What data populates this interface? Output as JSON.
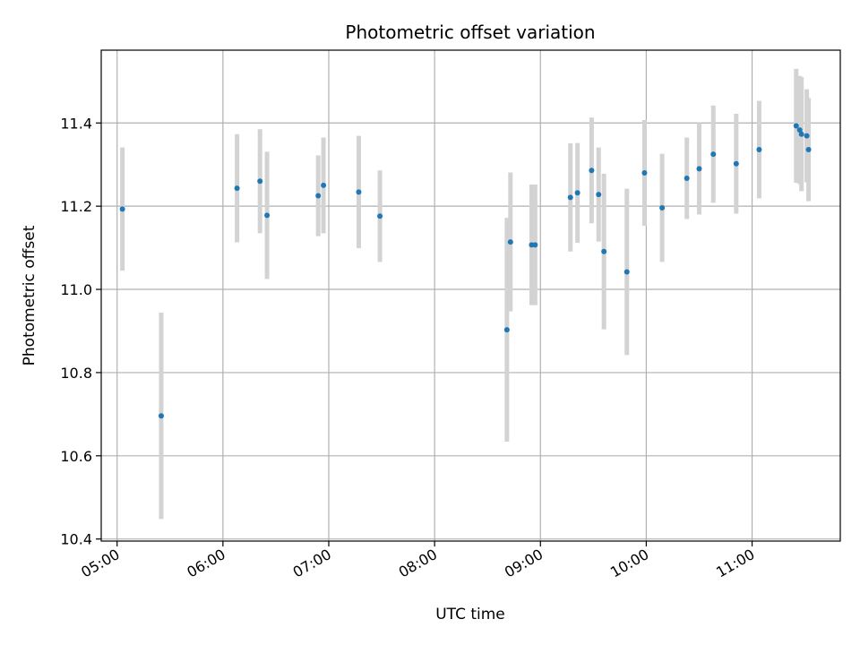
{
  "chart_data": {
    "type": "scatter",
    "title": "Photometric offset variation",
    "xlabel": "UTC time",
    "ylabel": "Photometric offset",
    "x_unit": "hours UTC",
    "xlim": [
      "04:51",
      "11:50"
    ],
    "ylim": [
      10.395,
      11.575
    ],
    "x_ticks": [
      "05:00",
      "06:00",
      "07:00",
      "08:00",
      "09:00",
      "10:00",
      "11:00"
    ],
    "y_ticks": [
      "10.4",
      "10.6",
      "10.8",
      "11.0",
      "11.2",
      "11.4"
    ],
    "grid": true,
    "marker_color": "#1f77b4",
    "errorbar_color": "#d3d3d3",
    "points": [
      {
        "x": "05:03",
        "y": 11.193,
        "yerr": 0.148
      },
      {
        "x": "05:25",
        "y": 10.696,
        "yerr": 0.248
      },
      {
        "x": "06:08",
        "y": 11.243,
        "yerr": 0.13
      },
      {
        "x": "06:21",
        "y": 11.26,
        "yerr": 0.125
      },
      {
        "x": "06:25",
        "y": 11.178,
        "yerr": 0.153
      },
      {
        "x": "06:54",
        "y": 11.225,
        "yerr": 0.097
      },
      {
        "x": "06:57",
        "y": 11.25,
        "yerr": 0.115
      },
      {
        "x": "07:17",
        "y": 11.234,
        "yerr": 0.135
      },
      {
        "x": "07:29",
        "y": 11.176,
        "yerr": 0.11
      },
      {
        "x": "08:41",
        "y": 10.903,
        "yerr": 0.269
      },
      {
        "x": "08:43",
        "y": 11.114,
        "yerr": 0.167
      },
      {
        "x": "08:55",
        "y": 11.107,
        "yerr": 0.145
      },
      {
        "x": "08:57",
        "y": 11.107,
        "yerr": 0.145
      },
      {
        "x": "09:17",
        "y": 11.221,
        "yerr": 0.13
      },
      {
        "x": "09:21",
        "y": 11.232,
        "yerr": 0.12
      },
      {
        "x": "09:29",
        "y": 11.286,
        "yerr": 0.127
      },
      {
        "x": "09:33",
        "y": 11.228,
        "yerr": 0.113
      },
      {
        "x": "09:36",
        "y": 11.091,
        "yerr": 0.187
      },
      {
        "x": "09:49",
        "y": 11.042,
        "yerr": 0.2
      },
      {
        "x": "09:59",
        "y": 11.28,
        "yerr": 0.127
      },
      {
        "x": "10:09",
        "y": 11.196,
        "yerr": 0.13
      },
      {
        "x": "10:23",
        "y": 11.267,
        "yerr": 0.098
      },
      {
        "x": "10:30",
        "y": 11.29,
        "yerr": 0.11
      },
      {
        "x": "10:38",
        "y": 11.325,
        "yerr": 0.117
      },
      {
        "x": "10:51",
        "y": 11.302,
        "yerr": 0.12
      },
      {
        "x": "11:04",
        "y": 11.336,
        "yerr": 0.117
      },
      {
        "x": "11:25",
        "y": 11.393,
        "yerr": 0.137
      },
      {
        "x": "11:27",
        "y": 11.383,
        "yerr": 0.13
      },
      {
        "x": "11:28",
        "y": 11.373,
        "yerr": 0.137
      },
      {
        "x": "11:31",
        "y": 11.369,
        "yerr": 0.112
      },
      {
        "x": "11:32",
        "y": 11.336,
        "yerr": 0.124
      }
    ]
  }
}
